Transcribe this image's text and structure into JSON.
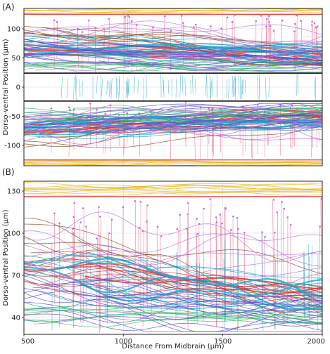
{
  "chart_data": [
    {
      "panel": "(A)",
      "type": "line",
      "xlabel": "",
      "ylabel": "Dorso-ventral Position (µm)",
      "xlim": [
        500,
        2000
      ],
      "ylim": [
        -135,
        135
      ],
      "yticks": [
        100,
        50,
        0,
        -50,
        -100
      ],
      "ytick_labels": [
        "100",
        "50",
        "0",
        "-50",
        "-100"
      ],
      "grid": true,
      "reference_lines": [
        {
          "y": 125,
          "color": "#e04a4a",
          "note": "dorsal boundary"
        },
        {
          "y": 24,
          "color": "#222222",
          "note": "midline band upper"
        },
        {
          "y": -24,
          "color": "#222222",
          "note": "midline band lower"
        },
        {
          "y": -125,
          "color": "#e04a4a",
          "note": "ventral boundary"
        }
      ],
      "bundles": [
        {
          "color": "#e8b820",
          "center": 130,
          "spread": 4,
          "trend": 0,
          "count": 8,
          "band": [
            120,
            135
          ]
        },
        {
          "color": "#e8b820",
          "center": -130,
          "spread": 4,
          "trend": 0,
          "count": 8,
          "band": [
            -135,
            -120
          ]
        },
        {
          "color": "#8b4a2b",
          "center": 90,
          "spread": 18,
          "trend": -40,
          "count": 10,
          "band": [
            30,
            130
          ]
        },
        {
          "color": "#d93030",
          "center": 70,
          "spread": 10,
          "trend": -20,
          "count": 10,
          "band": [
            30,
            120
          ]
        },
        {
          "color": "#1aa5c7",
          "center": 72,
          "spread": 14,
          "trend": -15,
          "count": 14,
          "band": [
            30,
            125
          ]
        },
        {
          "color": "#5a4fcf",
          "center": 62,
          "spread": 16,
          "trend": -15,
          "count": 16,
          "band": [
            28,
            125
          ]
        },
        {
          "color": "#3cb371",
          "center": 45,
          "spread": 10,
          "trend": -5,
          "count": 8,
          "band": [
            26,
            100
          ]
        },
        {
          "color": "#c070d8",
          "center": 70,
          "spread": 28,
          "trend": 0,
          "count": 8,
          "band": [
            26,
            125
          ]
        },
        {
          "color": "#8b4a2b",
          "center": -90,
          "spread": 18,
          "trend": 40,
          "count": 10,
          "band": [
            -130,
            -30
          ]
        },
        {
          "color": "#d93030",
          "center": -70,
          "spread": 10,
          "trend": 20,
          "count": 10,
          "band": [
            -120,
            -30
          ]
        },
        {
          "color": "#1aa5c7",
          "center": -72,
          "spread": 14,
          "trend": 15,
          "count": 14,
          "band": [
            -125,
            -30
          ]
        },
        {
          "color": "#5a4fcf",
          "center": -62,
          "spread": 16,
          "trend": 15,
          "count": 16,
          "band": [
            -125,
            -28
          ]
        },
        {
          "color": "#3cb371",
          "center": -45,
          "spread": 10,
          "trend": 5,
          "count": 8,
          "band": [
            -100,
            -26
          ]
        },
        {
          "color": "#c070d8",
          "center": -70,
          "spread": 28,
          "trend": 0,
          "count": 8,
          "band": [
            -125,
            -26
          ]
        }
      ],
      "vertical_traces": [
        {
          "color": "#1aa5c7",
          "count": 70,
          "y_range": [
            -24,
            24
          ]
        },
        {
          "color": "#e0507a",
          "count": 45,
          "y_range": [
            25,
            124
          ]
        },
        {
          "color": "#e0507a",
          "count": 45,
          "y_range": [
            -124,
            -25
          ]
        }
      ]
    },
    {
      "panel": "(B)",
      "type": "line",
      "xlabel": "Distance From Midbrain (µm)",
      "ylabel": "Dorso-ventral Position (µm)",
      "xlim": [
        500,
        2000
      ],
      "ylim": [
        28,
        137
      ],
      "xticks": [
        500,
        1000,
        1500,
        2000
      ],
      "xtick_labels": [
        "500",
        "1000",
        "1500",
        "2000"
      ],
      "yticks": [
        130,
        100,
        70,
        40
      ],
      "ytick_labels": [
        "130",
        "100",
        "70",
        "40"
      ],
      "grid": true,
      "reference_lines": [
        {
          "y": 126,
          "color": "#e04a4a",
          "note": "dorsal boundary"
        }
      ],
      "bundles": [
        {
          "color": "#e8b820",
          "center": 131,
          "spread": 3,
          "trend": 0,
          "count": 10,
          "band": [
            124,
            137
          ]
        },
        {
          "color": "#8b4a2b",
          "center": 90,
          "spread": 14,
          "trend": -35,
          "count": 10,
          "band": [
            35,
            120
          ]
        },
        {
          "color": "#d93030",
          "center": 70,
          "spread": 8,
          "trend": -15,
          "count": 10,
          "band": [
            40,
            110
          ]
        },
        {
          "color": "#1aa5c7",
          "center": 70,
          "spread": 14,
          "trend": -20,
          "count": 16,
          "band": [
            30,
            120
          ]
        },
        {
          "color": "#5a4fcf",
          "center": 55,
          "spread": 12,
          "trend": -15,
          "count": 18,
          "band": [
            30,
            115
          ]
        },
        {
          "color": "#3cb371",
          "center": 40,
          "spread": 5,
          "trend": 0,
          "count": 8,
          "band": [
            29,
            80
          ]
        },
        {
          "color": "#c070d8",
          "center": 80,
          "spread": 22,
          "trend": -10,
          "count": 8,
          "band": [
            30,
            125
          ]
        }
      ],
      "vertical_traces": [
        {
          "color": "#e0507a",
          "count": 55,
          "y_range": [
            29,
            125
          ]
        },
        {
          "color": "#1aa5c7",
          "count": 25,
          "y_range": [
            29,
            100
          ]
        }
      ]
    }
  ]
}
